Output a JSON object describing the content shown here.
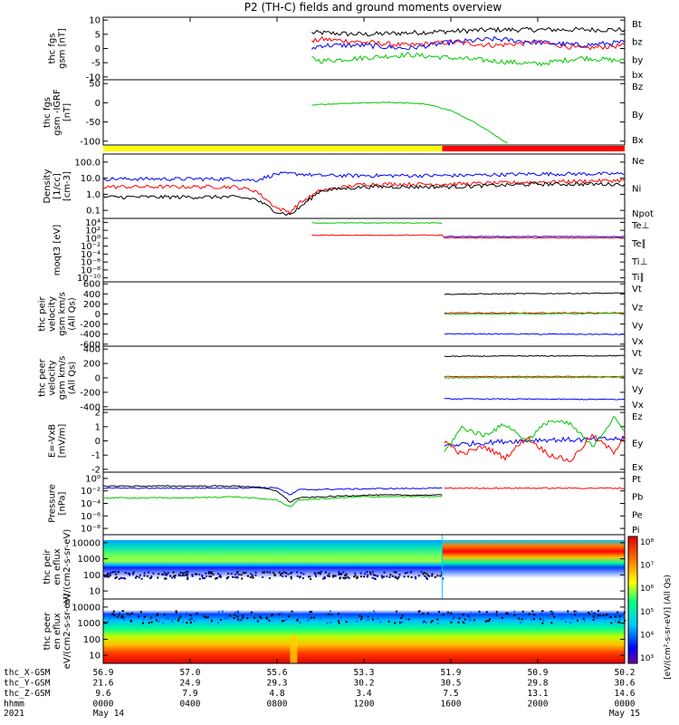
{
  "title": "P2 (TH-C) fields and ground moments overview",
  "colors": {
    "black": "#000000",
    "red": "#ff0000",
    "green": "#00c800",
    "blue": "#0000ff",
    "yellow": "#ffff00"
  },
  "chart_data": [
    {
      "type": "line",
      "ylabel": "thc fgs gsm [nT]",
      "yticks": [
        "10",
        "5",
        "0",
        "-5",
        "-10"
      ],
      "ylim": [
        -10,
        10
      ],
      "legend": [
        {
          "label": "Bt",
          "color": "#000000"
        },
        {
          "label": "bz",
          "color": "#ff0000"
        },
        {
          "label": "by",
          "color": "#00c800"
        },
        {
          "label": "bx",
          "color": "#0000ff"
        }
      ],
      "series": [
        {
          "name": "Bt",
          "color": "#000000",
          "x": [
            9.6,
            10,
            12,
            14,
            16,
            18,
            20,
            22,
            24
          ],
          "y": [
            5,
            5,
            4.5,
            5,
            5.5,
            6,
            6,
            6,
            6
          ]
        },
        {
          "name": "bz",
          "color": "#ff0000",
          "x": [
            9.6,
            10,
            12,
            14,
            16,
            18,
            20,
            22,
            24
          ],
          "y": [
            2,
            3,
            2,
            1,
            2,
            1,
            2,
            0,
            1
          ]
        },
        {
          "name": "by",
          "color": "#00c800",
          "x": [
            9.6,
            10,
            12,
            14,
            16,
            18,
            20,
            22,
            24
          ],
          "y": [
            -3,
            -4,
            -3,
            -2,
            -3,
            -4,
            -5,
            -3,
            -4
          ]
        },
        {
          "name": "bx",
          "color": "#0000ff",
          "x": [
            9.6,
            10,
            12,
            14,
            16,
            18,
            20,
            22,
            24
          ],
          "y": [
            0,
            1,
            1,
            0,
            2,
            3,
            2,
            1,
            2
          ]
        }
      ]
    },
    {
      "type": "line",
      "ylabel": "thc fgs gsm -IGRF [nT]",
      "yticks": [
        "50",
        "0",
        "-50",
        "-100"
      ],
      "ylim": [
        -120,
        70
      ],
      "legend": [
        {
          "label": "Bz",
          "color": "#ff0000"
        },
        {
          "label": "By",
          "color": "#00c800"
        },
        {
          "label": "Bx",
          "color": "#0000ff"
        }
      ],
      "series": [
        {
          "name": "By",
          "color": "#00c800",
          "x": [
            9.6,
            10,
            11,
            12,
            13,
            14,
            15,
            16,
            17,
            18,
            18.6
          ],
          "y": [
            -5,
            -2,
            1,
            3,
            4,
            3,
            -2,
            -20,
            -50,
            -90,
            -115
          ]
        }
      ]
    },
    {
      "type": "line",
      "ylabel": "Density [1/cc] [cm-3]",
      "yscale": "log",
      "yticks": [
        "100.0",
        "10.0",
        "1.0",
        "0.1"
      ],
      "ylim": [
        0.1,
        100
      ],
      "legend": [
        {
          "label": "Ne",
          "color": "#ff0000"
        },
        {
          "label": "Ni",
          "color": "#000000"
        },
        {
          "label": "Npot",
          "color": "#0000ff"
        }
      ],
      "series": [
        {
          "name": "Npot",
          "color": "#0000ff",
          "x": [
            0,
            4,
            6,
            7,
            8,
            9,
            10,
            12,
            16,
            20,
            24
          ],
          "y": [
            7,
            7,
            7,
            6,
            12,
            12,
            10,
            10,
            10,
            12,
            12
          ]
        },
        {
          "name": "Ne",
          "color": "#ff0000",
          "x": [
            0,
            4,
            6,
            7,
            8,
            8.6,
            9,
            10,
            12,
            16,
            20,
            24
          ],
          "y": [
            3,
            3,
            3,
            2,
            0.3,
            0.2,
            0.5,
            2,
            4,
            4,
            5,
            6
          ]
        },
        {
          "name": "Ni",
          "color": "#000000",
          "x": [
            0,
            4,
            6,
            7,
            8,
            8.6,
            9,
            10,
            12,
            16,
            20,
            24
          ],
          "y": [
            1,
            1,
            1,
            0.8,
            0.2,
            0.15,
            0.3,
            2,
            3,
            3,
            4,
            4
          ]
        }
      ]
    },
    {
      "type": "line",
      "ylabel": "moqt3 [eV]",
      "yscale": "log",
      "yticks": [
        "10⁴",
        "10²",
        "10⁰",
        "10⁻²",
        "10⁻⁴",
        "10⁻⁶",
        "10⁻⁸",
        "10⁻¹⁰"
      ],
      "ylim": [
        1e-10,
        10000
      ],
      "legend": [
        {
          "label": "Te⊥",
          "color": "#ff0000"
        },
        {
          "label": "Te∥",
          "color": "#000000"
        },
        {
          "label": "Ti⊥",
          "color": "#0000ff"
        },
        {
          "label": "Ti∥",
          "color": "#00c800"
        }
      ],
      "series": [
        {
          "name": "Ti∥",
          "color": "#00c800",
          "x": [
            9.6,
            15.6
          ],
          "y": [
            1000,
            1000
          ]
        },
        {
          "name": "Te⊥",
          "color": "#ff0000",
          "x": [
            9.6,
            15.6,
            15.7,
            24
          ],
          "y": [
            2,
            2,
            0.5,
            0.5
          ]
        },
        {
          "name": "Ti⊥",
          "color": "#0000ff",
          "x": [
            15.7,
            24
          ],
          "y": [
            1,
            1
          ]
        }
      ]
    },
    {
      "type": "line",
      "ylabel": "thc peir velocity gsm km/s (All Qs)",
      "yticks": [
        "600",
        "400",
        "200",
        "0",
        "-200",
        "-400",
        "-600"
      ],
      "ylim": [
        -600,
        600
      ],
      "legend": [
        {
          "label": "Vt",
          "color": "#000000"
        },
        {
          "label": "Vz",
          "color": "#ff0000"
        },
        {
          "label": "Vy",
          "color": "#00c800"
        },
        {
          "label": "Vx",
          "color": "#0000ff"
        }
      ],
      "series": [
        {
          "name": "Vt",
          "color": "#000000",
          "x": [
            15.7,
            24
          ],
          "y": [
            370,
            390
          ]
        },
        {
          "name": "Vz",
          "color": "#ff0000",
          "x": [
            15.7,
            24
          ],
          "y": [
            20,
            20
          ]
        },
        {
          "name": "Vy",
          "color": "#00c800",
          "x": [
            15.7,
            24
          ],
          "y": [
            0,
            10
          ]
        },
        {
          "name": "Vx",
          "color": "#0000ff",
          "x": [
            15.7,
            24
          ],
          "y": [
            -370,
            -380
          ]
        }
      ]
    },
    {
      "type": "line",
      "ylabel": "thc peer velocity gsm km/s (All Qs)",
      "yticks": [
        "400",
        "200",
        "0",
        "-200",
        "-400"
      ],
      "ylim": [
        -500,
        500
      ],
      "legend": [
        {
          "label": "Vt",
          "color": "#000000"
        },
        {
          "label": "Vz",
          "color": "#ff0000"
        },
        {
          "label": "Vy",
          "color": "#00c800"
        },
        {
          "label": "Vx",
          "color": "#0000ff"
        }
      ],
      "series": [
        {
          "name": "Vt",
          "color": "#000000",
          "x": [
            15.7,
            24
          ],
          "y": [
            340,
            350
          ]
        },
        {
          "name": "Vz",
          "color": "#ff0000",
          "x": [
            15.7,
            24
          ],
          "y": [
            20,
            20
          ]
        },
        {
          "name": "Vy",
          "color": "#00c800",
          "x": [
            15.7,
            24
          ],
          "y": [
            0,
            10
          ]
        },
        {
          "name": "Vx",
          "color": "#0000ff",
          "x": [
            15.7,
            24
          ],
          "y": [
            -330,
            -340
          ]
        }
      ]
    },
    {
      "type": "line",
      "ylabel": "E=-VxB [mV/m]",
      "yticks": [
        "2",
        "1",
        "0",
        "-1",
        "-2"
      ],
      "ylim": [
        -2.8,
        2.8
      ],
      "legend": [
        {
          "label": "Ez",
          "color": "#ff0000"
        },
        {
          "label": "Ey",
          "color": "#00c800"
        },
        {
          "label": "Ex",
          "color": "#0000ff"
        }
      ],
      "series": [
        {
          "name": "Ex",
          "color": "#0000ff",
          "x": [
            15.7,
            18,
            20,
            22,
            24
          ],
          "y": [
            -0.4,
            -0.1,
            0.1,
            0.1,
            0.2
          ]
        },
        {
          "name": "Ey",
          "color": "#00c800",
          "x": [
            15.7,
            16.5,
            17.5,
            18.5,
            19.5,
            20.5,
            21.5,
            22.5,
            23.5,
            24
          ],
          "y": [
            -1,
            1.2,
            0.5,
            1.5,
            0,
            1.8,
            1.5,
            -0.5,
            2,
            1
          ]
        },
        {
          "name": "Ez",
          "color": "#ff0000",
          "x": [
            15.7,
            16.5,
            17.5,
            18.5,
            19.5,
            20.5,
            21.5,
            22.5,
            23.5,
            24
          ],
          "y": [
            0,
            -1.2,
            -0.5,
            -1.5,
            0.3,
            -1.2,
            -1.8,
            0.5,
            -1,
            0.5
          ]
        }
      ]
    },
    {
      "type": "line",
      "ylabel": "Pressure [nPa]",
      "yscale": "log",
      "yticks": [
        "10⁰",
        "10⁻²",
        "10⁻⁴",
        "10⁻⁶",
        "10⁻⁸"
      ],
      "ylim": [
        1e-08,
        10
      ],
      "legend": [
        {
          "label": "Pt",
          "color": "#000000"
        },
        {
          "label": "Pb",
          "color": "#ff0000"
        },
        {
          "label": "Pe",
          "color": "#00c800"
        },
        {
          "label": "Pi",
          "color": "#0000ff"
        }
      ],
      "series": [
        {
          "name": "Pi",
          "color": "#0000ff",
          "x": [
            0,
            4,
            8,
            8.6,
            9,
            12,
            15.6
          ],
          "y": [
            0.05,
            0.05,
            0.06,
            0.005,
            0.03,
            0.04,
            0.05
          ]
        },
        {
          "name": "Pt",
          "color": "#000000",
          "x": [
            0,
            4,
            6,
            7,
            8,
            8.6,
            9,
            12,
            15.6
          ],
          "y": [
            0.1,
            0.1,
            0.1,
            0.08,
            0.02,
            0.0005,
            0.002,
            0.005,
            0.005
          ]
        },
        {
          "name": "Pe",
          "color": "#00c800",
          "x": [
            0,
            4,
            6,
            8,
            8.6,
            9,
            12,
            15.6
          ],
          "y": [
            0.002,
            0.002,
            0.003,
            0.001,
            0.0001,
            0.001,
            0.003,
            0.003
          ]
        },
        {
          "name": "Pb",
          "color": "#ff0000",
          "x": [
            15.7,
            20,
            24
          ],
          "y": [
            0.05,
            0.05,
            0.05
          ]
        }
      ]
    },
    {
      "type": "heatmap",
      "ylabel": "thc peir en eflux eV/(cm2-s-sr-eV)",
      "yticks": [
        "10000",
        "1000",
        "100",
        "10"
      ],
      "ylim": [
        5,
        30000
      ]
    },
    {
      "type": "heatmap",
      "ylabel": "thc peer en eflux eV/(cm2-s-sr-eV)",
      "yticks": [
        "10000",
        "1000",
        "100",
        "10"
      ],
      "ylim": [
        5,
        30000
      ]
    }
  ],
  "colorbar": {
    "label": "[eV/(cm²-s-sr-eV)] (All Qs)",
    "ticks": [
      "10⁸",
      "10⁷",
      "10⁶",
      "10⁵",
      "10⁴",
      "10³"
    ]
  },
  "xaxis": {
    "range_hours": [
      0,
      24
    ],
    "rows": [
      {
        "label": "thc_X-GSM",
        "values": [
          "56.9",
          "57.0",
          "55.6",
          "53.3",
          "51.9",
          "50.9",
          "50.2"
        ]
      },
      {
        "label": "thc_Y-GSM",
        "values": [
          "21.6",
          "24.9",
          "29.3",
          "30.2",
          "30.5",
          "29.8",
          "30.6"
        ]
      },
      {
        "label": "thc_Z-GSM",
        "values": [
          "9.6",
          "7.9",
          "4.8",
          "3.4",
          "7.5",
          "13.1",
          "14.6"
        ]
      },
      {
        "label": "hhmm",
        "values": [
          "0000",
          "0400",
          "0800",
          "1200",
          "1600",
          "2000",
          "0000"
        ]
      }
    ],
    "year": "2021",
    "date_start": "May 14",
    "date_end": "May 15"
  }
}
